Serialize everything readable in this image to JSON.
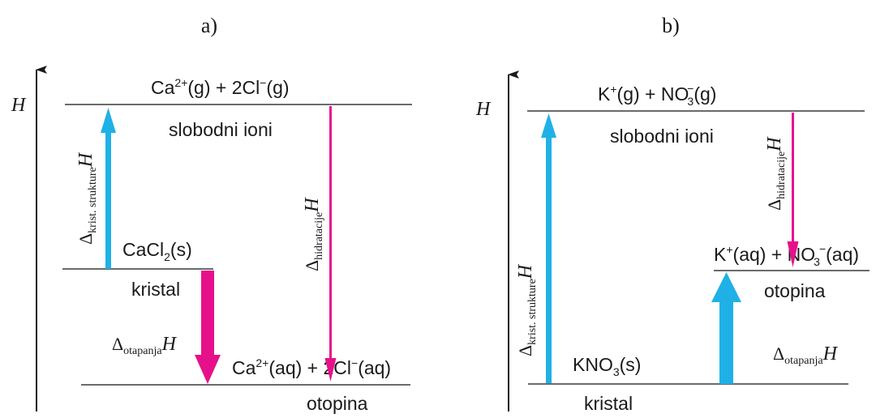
{
  "colors": {
    "line": "#3a3a3a",
    "blue": "#1fb1e6",
    "magenta": "#e6118a",
    "text": "#1a1a1a"
  },
  "panel_a": {
    "label": "a)",
    "axis_label": "H",
    "top_level": {
      "label": "slobodni ioni",
      "species": [
        "Ca",
        "2+",
        "(g) + 2Cl",
        "−",
        "(g)"
      ]
    },
    "crystal_level": {
      "label": "kristal",
      "species": [
        "CaCl",
        "2",
        "(s)"
      ]
    },
    "solution_level": {
      "label": "otopina",
      "species": [
        "Ca",
        "2+",
        "(aq) +  2Cl",
        "−",
        "(aq)"
      ]
    },
    "lattice": {
      "delta": "Δ",
      "subscript": "krist. strukture",
      "symbol": "H"
    },
    "hydration": {
      "delta": "Δ",
      "subscript": "hidratacije",
      "symbol": "H"
    },
    "solution": {
      "delta": "Δ",
      "subscript": "otapanja",
      "symbol": "H"
    }
  },
  "panel_b": {
    "label": "b)",
    "axis_label": "H",
    "top_level": {
      "label": "slobodni ioni",
      "species": [
        "K",
        "+",
        "(g) + NO",
        "3",
        "−",
        "(g)"
      ]
    },
    "crystal_level": {
      "label": "kristal",
      "species": [
        "KNO",
        "3",
        "(s)"
      ]
    },
    "solution_level": {
      "label": "otopina",
      "species": [
        "K",
        "+",
        "(aq) +  NO",
        "3",
        "−",
        "(aq)"
      ]
    },
    "lattice": {
      "delta": "Δ",
      "subscript": "krist. strukture",
      "symbol": "H"
    },
    "hydration": {
      "delta": "Δ",
      "subscript": "hidratacije",
      "symbol": "H"
    },
    "solution": {
      "delta": "Δ",
      "subscript": "otapanja",
      "symbol": "H"
    }
  }
}
